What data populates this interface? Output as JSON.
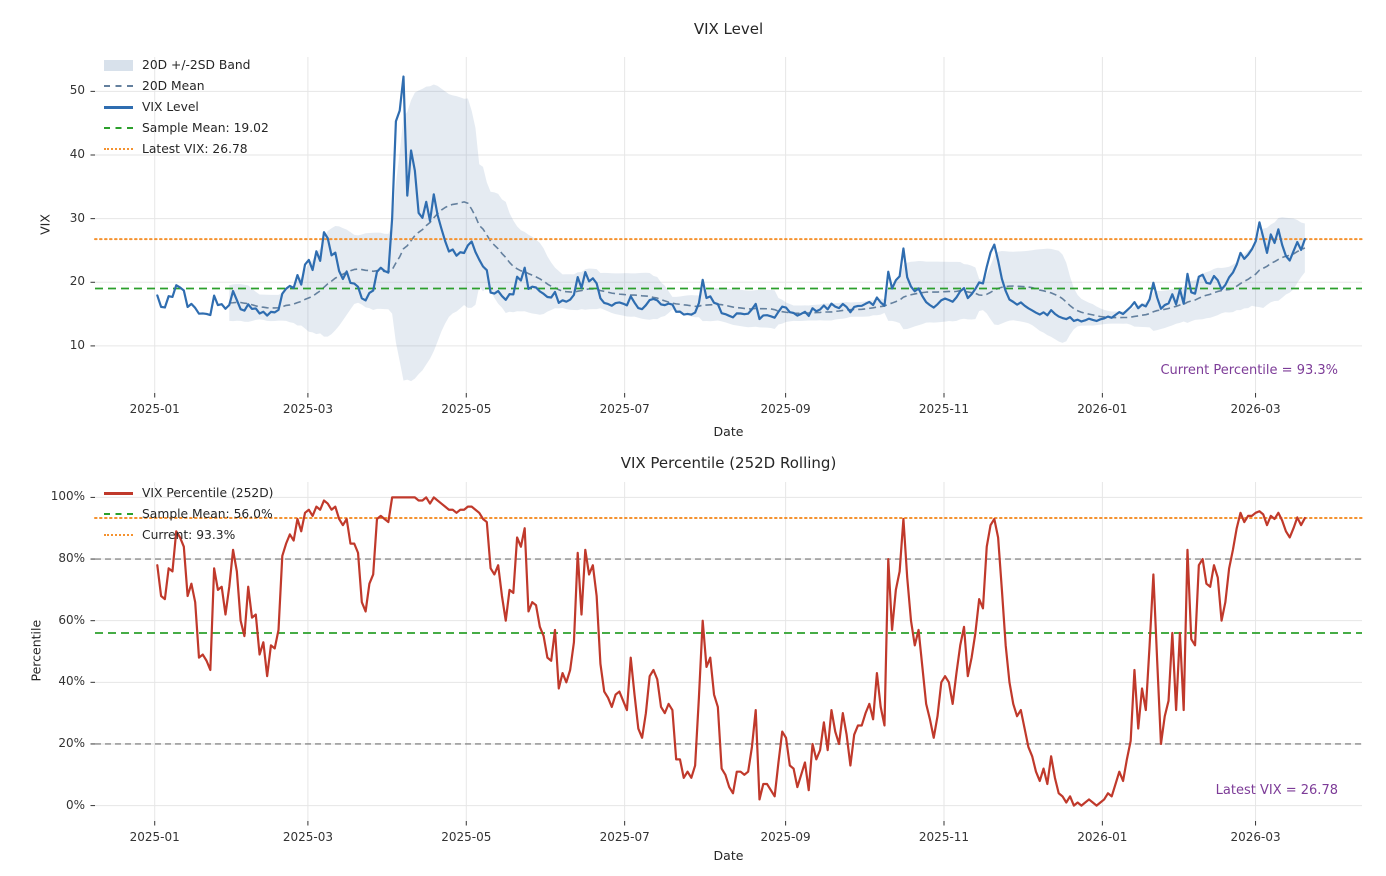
{
  "colors": {
    "background": "#ffffff",
    "vix_line": "#2f6db0",
    "mean_line": "#64809e",
    "band_fill": "rgba(100,135,175,0.17)",
    "band_swatch": "rgba(100,135,175,0.25)",
    "sample_mean_line": "#2ca02c",
    "latest_line": "#f5922f",
    "percentile_line": "#c0392b",
    "threshold_line": "#888888",
    "annotation_text": "#7d3c98",
    "grid": "#e6e6e6",
    "tick": "#333333"
  },
  "chart_data": [
    {
      "type": "line",
      "title": "VIX Level",
      "xlabel": "Date",
      "ylabel": "VIX",
      "x_start": "2025-01-02",
      "x_end": "2026-03-20",
      "xlim": [
        "2024-12-09",
        "2026-04-11"
      ],
      "ylim": [
        2.6,
        55.4
      ],
      "yticks": [
        10,
        20,
        30,
        40,
        50
      ],
      "ytick_suffix": "",
      "xticks": [
        "2025-01",
        "2025-03",
        "2025-05",
        "2025-07",
        "2025-09",
        "2025-11",
        "2026-01",
        "2026-03"
      ],
      "grid": true,
      "legend_position": "upper left",
      "annotation": "Current Percentile = 93.3%",
      "sample_mean": 19.02,
      "latest_vix": 26.78,
      "hlines": [
        {
          "label": "Sample Mean: 19.02",
          "value": 19.02,
          "style": "dashed-green"
        },
        {
          "label": "Latest VIX: 26.78",
          "value": 26.78,
          "style": "dotted-orange"
        }
      ],
      "legend": [
        {
          "style": "band",
          "label": "20D +/-2SD Band"
        },
        {
          "style": "dashed-slate",
          "label": "20D Mean"
        },
        {
          "style": "solid-blue",
          "label": "VIX Level"
        },
        {
          "style": "dashed-green",
          "label": "Sample Mean: 19.02"
        },
        {
          "style": "dotted-orange",
          "label": "Latest VIX: 26.78"
        }
      ],
      "series": [
        {
          "name": "20D +/-2SD Band",
          "style": "band",
          "derived_from": "VIX Level",
          "window": 20,
          "sd_mult": 2
        },
        {
          "name": "20D Mean",
          "style": "dashed-slate",
          "derived_from": "VIX Level",
          "window": 20
        },
        {
          "name": "VIX Level",
          "style": "solid-blue",
          "values": [
            17.93,
            16.13,
            16.04,
            17.82,
            17.7,
            19.54,
            19.19,
            18.71,
            16.12,
            16.6,
            15.97,
            15.06,
            15.1,
            15.02,
            14.85,
            17.9,
            16.41,
            16.56,
            15.84,
            16.43,
            18.62,
            17.21,
            15.77,
            15.54,
            16.54,
            15.81,
            15.89,
            15.1,
            15.37,
            14.77,
            15.35,
            15.27,
            15.66,
            18.21,
            18.98,
            19.43,
            19.1,
            21.13,
            19.63,
            22.78,
            23.51,
            21.93,
            24.87,
            23.37,
            27.86,
            26.92,
            24.23,
            24.66,
            21.77,
            20.51,
            21.7,
            19.9,
            19.8,
            19.28,
            17.48,
            17.15,
            18.33,
            18.69,
            21.65,
            22.28,
            21.77,
            21.51,
            30.02,
            45.31,
            46.98,
            52.33,
            33.62,
            40.72,
            37.56,
            30.89,
            30.12,
            32.64,
            29.65,
            33.82,
            30.57,
            28.45,
            26.47,
            24.84,
            25.15,
            24.17,
            24.72,
            24.6,
            25.8,
            26.4,
            24.76,
            23.55,
            22.48,
            21.9,
            18.38,
            18.22,
            18.62,
            17.83,
            17.24,
            18.14,
            18.09,
            20.87,
            20.28,
            22.29,
            18.96,
            19.31,
            19.18,
            18.57,
            18.18,
            17.69,
            17.61,
            18.48,
            16.77,
            17.16,
            16.95,
            17.26,
            18.02,
            20.82,
            19.11,
            21.6,
            20.14,
            20.62,
            19.83,
            17.48,
            16.76,
            16.59,
            16.32,
            16.73,
            16.83,
            16.64,
            16.38,
            17.79,
            16.81,
            15.94,
            15.78,
            16.4,
            17.2,
            17.38,
            17.16,
            16.52,
            16.41,
            16.65,
            16.5,
            15.37,
            15.39,
            14.93,
            15.03,
            14.92,
            15.24,
            16.72,
            20.38,
            17.52,
            17.79,
            16.77,
            16.57,
            15.15,
            14.99,
            14.73,
            14.49,
            15.11,
            15.09,
            14.98,
            15.06,
            15.76,
            16.6,
            14.22,
            14.79,
            14.83,
            14.65,
            14.43,
            15.36,
            16.17,
            16.02,
            15.3,
            15.18,
            14.76,
            15.04,
            15.36,
            14.71,
            15.91,
            15.45,
            15.72,
            16.35,
            15.74,
            16.64,
            16.18,
            15.93,
            16.58,
            16.12,
            15.29,
            16.12,
            16.28,
            16.3,
            16.62,
            16.91,
            16.43,
            17.61,
            16.82,
            16.33,
            21.66,
            19.02,
            20.31,
            20.95,
            25.31,
            20.78,
            19.32,
            18.58,
            19.04,
            17.82,
            16.88,
            16.41,
            16.02,
            16.54,
            17.18,
            17.44,
            17.21,
            16.94,
            17.63,
            18.58,
            19.08,
            17.52,
            18.12,
            18.96,
            19.98,
            19.81,
            22.42,
            24.69,
            25.92,
            23.41,
            20.52,
            18.63,
            17.28,
            16.92,
            16.48,
            16.84,
            16.32,
            15.91,
            15.58,
            15.22,
            14.93,
            15.28,
            14.81,
            15.62,
            15.04,
            14.62,
            14.38,
            14.21,
            14.52,
            13.92,
            14.12,
            13.84,
            14.02,
            14.28,
            14.08,
            13.92,
            14.18,
            14.32,
            14.61,
            14.42,
            14.88,
            15.31,
            15.02,
            15.58,
            16.12,
            16.88,
            15.92,
            16.48,
            16.21,
            17.32,
            19.92,
            17.58,
            15.84,
            16.42,
            16.68,
            18.12,
            16.52,
            18.88,
            16.62,
            21.32,
            18.42,
            18.21,
            20.88,
            21.18,
            19.92,
            19.78,
            20.98,
            20.32,
            18.88,
            19.58,
            20.78,
            21.52,
            22.78,
            24.62,
            23.68,
            24.32,
            25.18,
            26.42,
            29.42,
            27.08,
            24.62,
            27.52,
            26.18,
            28.32,
            25.88,
            24.12,
            23.42,
            24.88,
            26.32,
            25.08,
            26.78
          ]
        }
      ]
    },
    {
      "type": "line",
      "title": "VIX Percentile (252D Rolling)",
      "xlabel": "Date",
      "ylabel": "Percentile",
      "x_start": "2025-01-02",
      "x_end": "2026-03-20",
      "xlim": [
        "2024-12-09",
        "2026-04-11"
      ],
      "ylim": [
        -5,
        105
      ],
      "yticks": [
        0,
        20,
        40,
        60,
        80,
        100
      ],
      "ytick_suffix": "%",
      "xticks": [
        "2025-01",
        "2025-03",
        "2025-05",
        "2025-07",
        "2025-09",
        "2025-11",
        "2026-01",
        "2026-03"
      ],
      "grid": true,
      "legend_position": "upper left",
      "annotation": "Latest VIX = 26.78",
      "sample_mean_pct": 56.0,
      "current_pct": 93.3,
      "hlines": [
        {
          "value": 80,
          "style": "dashed-gray"
        },
        {
          "value": 20,
          "style": "dashed-gray"
        },
        {
          "label": "Sample Mean: 56.0%",
          "value": 56.0,
          "style": "dashed-green"
        },
        {
          "label": "Current: 93.3%",
          "value": 93.3,
          "style": "dotted-orange"
        }
      ],
      "legend": [
        {
          "style": "solid-red",
          "label": "VIX Percentile (252D)"
        },
        {
          "style": "dashed-green",
          "label": "Sample Mean: 56.0%"
        },
        {
          "style": "dotted-orange",
          "label": "Current: 93.3%"
        }
      ],
      "series": [
        {
          "name": "VIX Percentile (252D)",
          "style": "solid-red",
          "values": [
            78,
            68,
            67,
            77,
            76,
            89,
            87,
            84,
            68,
            72,
            66,
            48,
            49,
            47,
            44,
            77,
            70,
            71,
            62,
            71,
            83,
            76,
            60,
            55,
            71,
            61,
            62,
            49,
            53,
            42,
            52,
            51,
            57,
            81,
            85,
            88,
            86,
            93,
            89,
            95,
            96,
            94,
            97,
            96,
            99,
            98,
            96,
            97,
            93,
            91,
            93,
            85,
            85,
            82,
            66,
            63,
            72,
            75,
            93,
            94,
            93,
            92,
            100,
            100,
            100,
            100,
            100,
            100,
            100,
            99,
            99,
            100,
            98,
            100,
            99,
            98,
            97,
            96,
            96,
            95,
            96,
            96,
            97,
            97,
            96,
            95,
            93,
            92,
            77,
            75,
            78,
            68,
            60,
            70,
            69,
            87,
            84,
            90,
            63,
            66,
            65,
            58,
            55,
            48,
            47,
            57,
            38,
            43,
            40,
            44,
            53,
            82,
            62,
            83,
            75,
            78,
            68,
            46,
            37,
            35,
            32,
            36,
            37,
            34,
            31,
            48,
            36,
            25,
            22,
            30,
            42,
            44,
            41,
            32,
            30,
            33,
            31,
            15,
            15,
            9,
            11,
            9,
            13,
            35,
            60,
            45,
            48,
            36,
            32,
            12,
            10,
            6,
            4,
            11,
            11,
            10,
            11,
            19,
            31,
            2,
            7,
            7,
            5,
            3,
            14,
            24,
            22,
            13,
            12,
            6,
            10,
            14,
            5,
            20,
            15,
            18,
            27,
            18,
            31,
            24,
            20,
            30,
            23,
            13,
            23,
            26,
            26,
            30,
            33,
            28,
            43,
            32,
            26,
            80,
            57,
            70,
            76,
            93,
            74,
            60,
            52,
            57,
            45,
            33,
            28,
            22,
            29,
            40,
            42,
            40,
            33,
            43,
            52,
            58,
            42,
            48,
            56,
            67,
            64,
            84,
            91,
            93,
            87,
            70,
            52,
            40,
            33,
            29,
            31,
            25,
            19,
            16,
            11,
            8,
            12,
            7,
            16,
            9,
            4,
            3,
            1,
            3,
            0,
            1,
            0,
            1,
            2,
            1,
            0,
            1,
            2,
            4,
            3,
            7,
            11,
            8,
            15,
            21,
            44,
            25,
            38,
            31,
            52,
            75,
            47,
            20,
            29,
            34,
            56,
            31,
            56,
            31,
            83,
            54,
            52,
            78,
            80,
            72,
            71,
            78,
            74,
            60,
            66,
            77,
            83,
            90,
            95,
            92,
            94,
            94,
            95,
            95.5,
            94.5,
            91,
            94,
            93,
            95,
            92.5,
            89,
            87,
            90,
            93.5,
            91,
            93.3
          ]
        }
      ]
    }
  ]
}
